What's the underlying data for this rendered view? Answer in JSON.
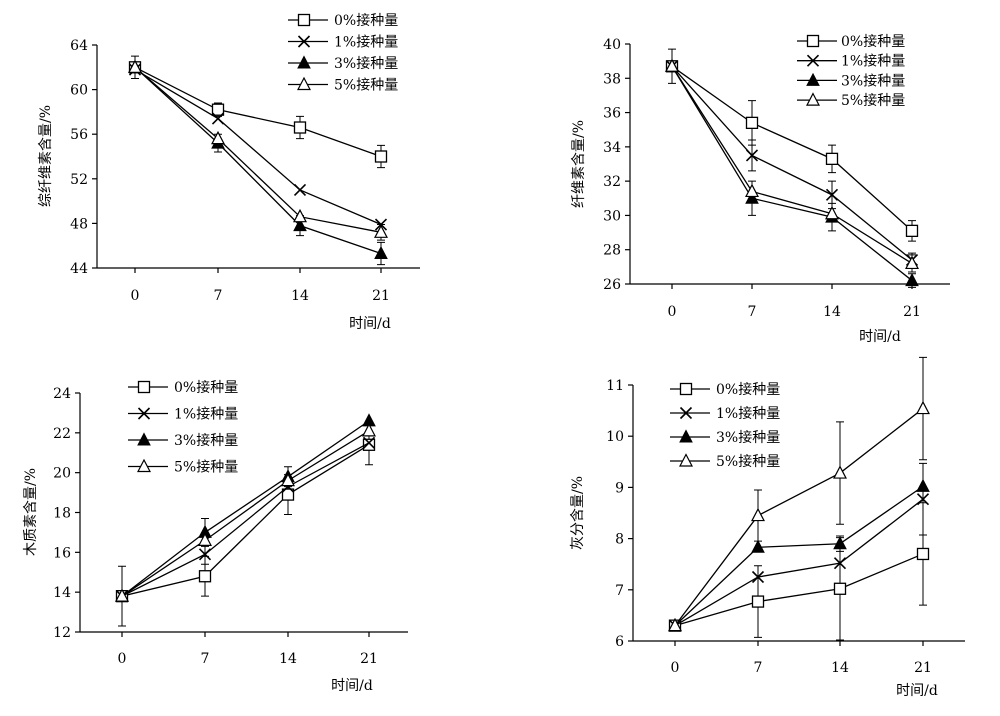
{
  "chart_data": [
    {
      "type": "line",
      "ylabel": "综纤维素含量/%",
      "xlabel": "时间/d",
      "x": [
        0,
        7,
        14,
        21
      ],
      "ylim": [
        44,
        64
      ],
      "yticks": [
        44,
        48,
        52,
        56,
        60,
        64
      ],
      "legend_position": "top-right",
      "series": [
        {
          "name": "0%接种量",
          "marker": "square-open",
          "values": [
            62.0,
            58.2,
            56.6,
            54.0
          ],
          "errors": [
            1.0,
            0.6,
            1.0,
            1.0
          ]
        },
        {
          "name": "1%接种量",
          "marker": "x",
          "values": [
            61.8,
            57.4,
            51.0,
            47.9
          ],
          "errors": [
            0,
            0,
            0,
            0
          ]
        },
        {
          "name": "3%接种量",
          "marker": "triangle-filled",
          "values": [
            62.0,
            55.2,
            47.8,
            45.3
          ],
          "errors": [
            0,
            0.8,
            0.9,
            1.0
          ]
        },
        {
          "name": "5%接种量",
          "marker": "triangle-open",
          "values": [
            62.0,
            55.6,
            48.6,
            47.2
          ],
          "errors": [
            0,
            0,
            0,
            0.7
          ]
        }
      ]
    },
    {
      "type": "line",
      "ylabel": "纤维素含量/%",
      "xlabel": "时间/d",
      "x": [
        0,
        7,
        14,
        21
      ],
      "ylim": [
        26,
        40
      ],
      "yticks": [
        26,
        28,
        30,
        32,
        34,
        36,
        38,
        40
      ],
      "legend_position": "top-right",
      "series": [
        {
          "name": "0%接种量",
          "marker": "square-open",
          "values": [
            38.7,
            35.4,
            33.3,
            29.1
          ],
          "errors": [
            1.0,
            1.3,
            0.8,
            0.6
          ]
        },
        {
          "name": "1%接种量",
          "marker": "x",
          "values": [
            38.7,
            33.5,
            31.2,
            27.4
          ],
          "errors": [
            0,
            0.9,
            0.8,
            0.4
          ]
        },
        {
          "name": "3%接种量",
          "marker": "triangle-filled",
          "values": [
            38.7,
            31.0,
            29.9,
            26.2
          ],
          "errors": [
            0,
            1.0,
            0.8,
            0.4
          ]
        },
        {
          "name": "5%接种量",
          "marker": "triangle-open",
          "values": [
            38.7,
            31.4,
            30.1,
            27.2
          ],
          "errors": [
            0,
            0,
            0,
            0.5
          ]
        }
      ]
    },
    {
      "type": "line",
      "ylabel": "木质素含量/%",
      "xlabel": "时间/d",
      "x": [
        0,
        7,
        14,
        21
      ],
      "ylim": [
        12,
        24
      ],
      "yticks": [
        12,
        14,
        16,
        18,
        20,
        22,
        24
      ],
      "legend_position": "top-left",
      "series": [
        {
          "name": "0%接种量",
          "marker": "square-open",
          "values": [
            13.8,
            14.8,
            18.9,
            21.4
          ],
          "errors": [
            1.5,
            1.0,
            1.0,
            1.0
          ]
        },
        {
          "name": "1%接种量",
          "marker": "x",
          "values": [
            13.8,
            15.9,
            19.3,
            21.5
          ],
          "errors": [
            0,
            0.5,
            0,
            0
          ]
        },
        {
          "name": "3%接种量",
          "marker": "triangle-filled",
          "values": [
            13.8,
            17.0,
            19.8,
            22.6
          ],
          "errors": [
            0,
            0.7,
            0.5,
            0
          ]
        },
        {
          "name": "5%接种量",
          "marker": "triangle-open",
          "values": [
            13.8,
            16.6,
            19.6,
            22.1
          ],
          "errors": [
            0,
            0,
            0,
            0
          ]
        }
      ]
    },
    {
      "type": "line",
      "ylabel": "灰分含量/%",
      "xlabel": "时间/d",
      "x": [
        0,
        7,
        14,
        21
      ],
      "ylim": [
        6,
        11
      ],
      "yticks": [
        6,
        7,
        8,
        9,
        10,
        11
      ],
      "legend_position": "top-left",
      "series": [
        {
          "name": "0%接种量",
          "marker": "square-open",
          "values": [
            6.3,
            6.77,
            7.02,
            7.7
          ],
          "errors": [
            0.1,
            0.7,
            1.0,
            1.0
          ]
        },
        {
          "name": "1%接种量",
          "marker": "x",
          "values": [
            6.3,
            7.25,
            7.52,
            8.77
          ],
          "errors": [
            0,
            0,
            0,
            0.7
          ]
        },
        {
          "name": "3%接种量",
          "marker": "triangle-filled",
          "values": [
            6.3,
            7.83,
            7.9,
            9.02
          ],
          "errors": [
            0,
            0,
            0.15,
            0
          ]
        },
        {
          "name": "5%接种量",
          "marker": "triangle-open",
          "values": [
            6.3,
            8.45,
            9.28,
            10.54
          ],
          "errors": [
            0,
            0.5,
            1.0,
            1.0
          ]
        }
      ]
    }
  ]
}
